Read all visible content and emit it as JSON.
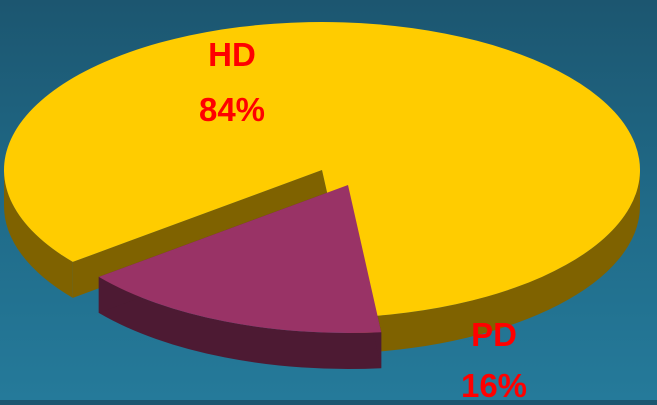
{
  "chart_data": {
    "type": "pie",
    "style": "3d-exploded",
    "slices": [
      {
        "label": "HD",
        "value": 84,
        "value_text": "84%",
        "color": "#ffcc00",
        "side_color": "#7f6200"
      },
      {
        "label": "PD",
        "value": 16,
        "value_text": "16%",
        "color": "#993366",
        "side_color": "#4d1a33"
      }
    ],
    "label_color": "#ff0000",
    "title": "",
    "legend": "none"
  },
  "background": {
    "top": "#1c5670",
    "bottom": "#257a9a"
  }
}
